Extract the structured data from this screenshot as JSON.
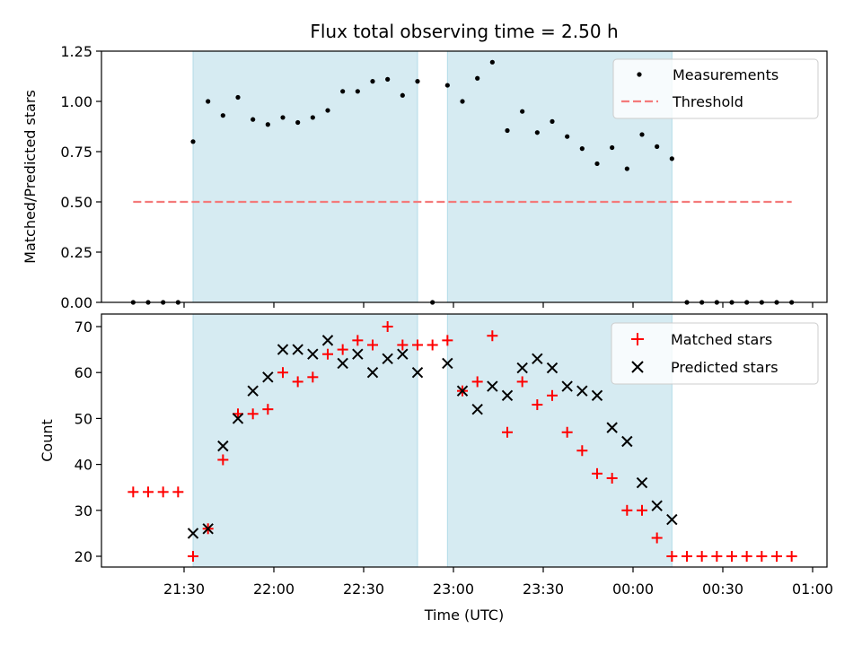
{
  "chart_data": [
    {
      "type": "scatter",
      "title": "Flux total observing time = 2.50 h",
      "xlabel": "",
      "ylabel": "Matched/Predicted stars",
      "ylim": [
        0,
        1.25
      ],
      "yticks": [
        "0.00",
        "0.25",
        "0.50",
        "0.75",
        "1.00",
        "1.25"
      ],
      "grid": false,
      "legend": {
        "placement": "top-right",
        "entries": [
          "Measurements",
          "Threshold"
        ]
      },
      "shaded_intervals": [
        [
          "21:33",
          "22:48"
        ],
        [
          "22:58",
          "00:13"
        ]
      ],
      "series": [
        {
          "name": "Measurements",
          "color": "#000000",
          "points": [
            [
              "21:13",
              0.0
            ],
            [
              "21:18",
              0.0
            ],
            [
              "21:23",
              0.0
            ],
            [
              "21:28",
              0.0
            ],
            [
              "21:33",
              0.8
            ],
            [
              "21:38",
              1.0
            ],
            [
              "21:43",
              0.93
            ],
            [
              "21:48",
              1.02
            ],
            [
              "21:53",
              0.91
            ],
            [
              "21:58",
              0.885
            ],
            [
              "22:03",
              0.92
            ],
            [
              "22:08",
              0.895
            ],
            [
              "22:13",
              0.92
            ],
            [
              "22:18",
              0.955
            ],
            [
              "22:23",
              1.05
            ],
            [
              "22:28",
              1.05
            ],
            [
              "22:33",
              1.1
            ],
            [
              "22:38",
              1.11
            ],
            [
              "22:43",
              1.03
            ],
            [
              "22:48",
              1.1
            ],
            [
              "22:53",
              0.0
            ],
            [
              "22:58",
              1.08
            ],
            [
              "23:03",
              1.0
            ],
            [
              "23:08",
              1.115
            ],
            [
              "23:13",
              1.195
            ],
            [
              "23:18",
              0.855
            ],
            [
              "23:23",
              0.95
            ],
            [
              "23:28",
              0.845
            ],
            [
              "23:33",
              0.9
            ],
            [
              "23:38",
              0.825
            ],
            [
              "23:43",
              0.765
            ],
            [
              "23:48",
              0.69
            ],
            [
              "23:53",
              0.77
            ],
            [
              "23:58",
              0.665
            ],
            [
              "00:03",
              0.835
            ],
            [
              "00:08",
              0.775
            ],
            [
              "00:13",
              0.715
            ],
            [
              "00:18",
              0.0
            ],
            [
              "00:23",
              0.0
            ],
            [
              "00:28",
              0.0
            ],
            [
              "00:33",
              0.0
            ],
            [
              "00:38",
              0.0
            ],
            [
              "00:43",
              0.0
            ],
            [
              "00:48",
              0.0
            ],
            [
              "00:53",
              0.0
            ]
          ]
        },
        {
          "name": "Threshold",
          "color": "#f47a7a",
          "style": "dashed",
          "points": [
            [
              "21:13",
              0.5
            ],
            [
              "00:53",
              0.5
            ]
          ]
        }
      ]
    },
    {
      "type": "scatter",
      "title": "",
      "xlabel": "Time (UTC)",
      "ylabel": "Count",
      "ylim": [
        17.5,
        72.5
      ],
      "yticks": [
        "20",
        "30",
        "40",
        "50",
        "60",
        "70"
      ],
      "xticks": [
        "21:30",
        "22:00",
        "22:30",
        "23:00",
        "23:30",
        "00:00",
        "00:30",
        "01:00"
      ],
      "grid": false,
      "legend": {
        "placement": "top-right",
        "entries": [
          "Matched stars",
          "Predicted stars"
        ]
      },
      "shaded_intervals": [
        [
          "21:33",
          "22:48"
        ],
        [
          "22:58",
          "00:13"
        ]
      ],
      "series": [
        {
          "name": "Matched stars",
          "color": "#ff0000",
          "marker": "+",
          "points": [
            [
              "21:13",
              34
            ],
            [
              "21:18",
              34
            ],
            [
              "21:23",
              34
            ],
            [
              "21:28",
              34
            ],
            [
              "21:33",
              20
            ],
            [
              "21:38",
              26
            ],
            [
              "21:43",
              41
            ],
            [
              "21:48",
              51
            ],
            [
              "21:53",
              51
            ],
            [
              "21:58",
              52
            ],
            [
              "22:03",
              60
            ],
            [
              "22:08",
              58
            ],
            [
              "22:13",
              59
            ],
            [
              "22:18",
              64
            ],
            [
              "22:23",
              65
            ],
            [
              "22:28",
              67
            ],
            [
              "22:33",
              66
            ],
            [
              "22:38",
              70
            ],
            [
              "22:43",
              66
            ],
            [
              "22:48",
              66
            ],
            [
              "22:53",
              66
            ],
            [
              "22:58",
              67
            ],
            [
              "23:03",
              56
            ],
            [
              "23:08",
              58
            ],
            [
              "23:13",
              68
            ],
            [
              "23:18",
              47
            ],
            [
              "23:23",
              58
            ],
            [
              "23:28",
              53
            ],
            [
              "23:33",
              55
            ],
            [
              "23:38",
              47
            ],
            [
              "23:43",
              43
            ],
            [
              "23:48",
              38
            ],
            [
              "23:53",
              37
            ],
            [
              "23:58",
              30
            ],
            [
              "00:03",
              30
            ],
            [
              "00:08",
              24
            ],
            [
              "00:13",
              20
            ],
            [
              "00:18",
              20
            ],
            [
              "00:23",
              20
            ],
            [
              "00:28",
              20
            ],
            [
              "00:33",
              20
            ],
            [
              "00:38",
              20
            ],
            [
              "00:43",
              20
            ],
            [
              "00:48",
              20
            ],
            [
              "00:53",
              20
            ]
          ]
        },
        {
          "name": "Predicted stars",
          "color": "#000000",
          "marker": "x",
          "points": [
            [
              "21:33",
              25
            ],
            [
              "21:38",
              26
            ],
            [
              "21:43",
              44
            ],
            [
              "21:48",
              50
            ],
            [
              "21:53",
              56
            ],
            [
              "21:58",
              59
            ],
            [
              "22:03",
              65
            ],
            [
              "22:08",
              65
            ],
            [
              "22:13",
              64
            ],
            [
              "22:18",
              67
            ],
            [
              "22:23",
              62
            ],
            [
              "22:28",
              64
            ],
            [
              "22:33",
              60
            ],
            [
              "22:38",
              63
            ],
            [
              "22:43",
              64
            ],
            [
              "22:48",
              60
            ],
            [
              "22:58",
              62
            ],
            [
              "23:03",
              56
            ],
            [
              "23:08",
              52
            ],
            [
              "23:13",
              57
            ],
            [
              "23:18",
              55
            ],
            [
              "23:23",
              61
            ],
            [
              "23:28",
              63
            ],
            [
              "23:33",
              61
            ],
            [
              "23:38",
              57
            ],
            [
              "23:43",
              56
            ],
            [
              "23:48",
              55
            ],
            [
              "23:53",
              48
            ],
            [
              "23:58",
              45
            ],
            [
              "00:03",
              36
            ],
            [
              "00:08",
              31
            ],
            [
              "00:13",
              28
            ]
          ]
        }
      ]
    }
  ]
}
